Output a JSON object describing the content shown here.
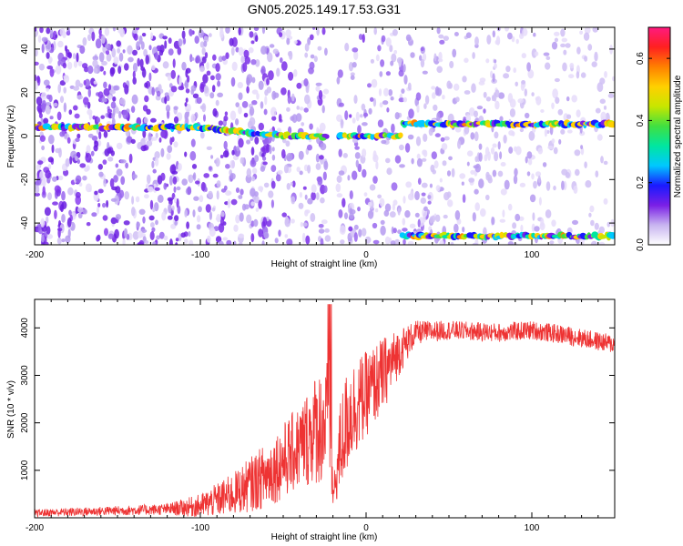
{
  "chart_data": [
    {
      "type": "heatmap",
      "title": "GN05.2025.149.17.53.G31",
      "xlabel": "Height of straight line (km)",
      "ylabel": "Frequency (Hz)",
      "xlim": [
        -200,
        150
      ],
      "ylim": [
        -50,
        50
      ],
      "xticks": [
        -200,
        -100,
        0,
        100
      ],
      "yticks": [
        -40,
        -20,
        0,
        20,
        40
      ],
      "colorbar": {
        "label": "Normalized spectral amplitude",
        "range": [
          0,
          0.7
        ],
        "ticks": [
          0.0,
          0.2,
          0.4,
          0.6
        ],
        "colors": [
          "#ffffff",
          "#c8b4f0",
          "#7a1fe6",
          "#1a1aff",
          "#00c8ff",
          "#00e6a0",
          "#40e040",
          "#c8e600",
          "#ffd000",
          "#ff8000",
          "#ff2020",
          "#ff1a80"
        ]
      },
      "features": [
        {
          "name": "center line",
          "x": [
            -200,
            -100,
            -50,
            -20,
            0,
            10,
            22
          ],
          "y": [
            4,
            4,
            0,
            0,
            0,
            0,
            0
          ]
        },
        {
          "name": "upper line",
          "x": [
            22,
            150
          ],
          "y": [
            5.5,
            5.5
          ]
        },
        {
          "name": "lower line",
          "x": [
            22,
            150
          ],
          "y": [
            -46,
            -46
          ]
        }
      ],
      "gap_x": -20
    },
    {
      "type": "line",
      "title": "",
      "xlabel": "Height of straight line (km)",
      "ylabel": "SNR (10 * v/v)",
      "xlim": [
        -200,
        150
      ],
      "ylim": [
        0,
        4600
      ],
      "xticks": [
        -200,
        -100,
        0,
        100
      ],
      "yticks": [
        1000,
        2000,
        3000,
        4000
      ],
      "color": "#ee3333",
      "envelope": {
        "x": [
          -200,
          -150,
          -120,
          -100,
          -80,
          -60,
          -40,
          -30,
          -22,
          -20,
          -15,
          -10,
          0,
          10,
          20,
          30,
          50,
          80,
          100,
          120,
          150
        ],
        "base": [
          100,
          150,
          180,
          250,
          500,
          900,
          1500,
          1900,
          2000,
          400,
          1600,
          2200,
          2600,
          3000,
          3500,
          3900,
          3950,
          3900,
          3950,
          3850,
          3650
        ],
        "amp": [
          80,
          100,
          120,
          250,
          450,
          700,
          900,
          1200,
          1400,
          200,
          1100,
          1100,
          900,
          800,
          500,
          250,
          200,
          200,
          200,
          200,
          200
        ]
      }
    }
  ]
}
